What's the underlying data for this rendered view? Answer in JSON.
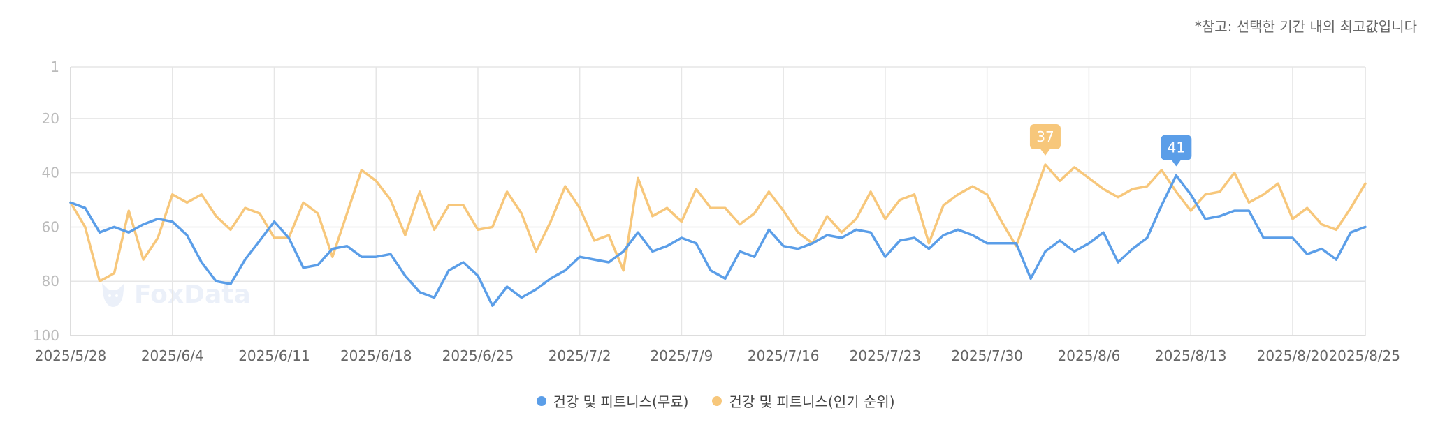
{
  "note": "*참고: 선택한 기간 내의 최고값입니다",
  "watermark": "FoxData",
  "legend": [
    {
      "label": "건강 및 피트니스(무료)",
      "color": "#5b9ee8"
    },
    {
      "label": "건강 및 피트니스(인기 순위)",
      "color": "#f7c77b"
    }
  ],
  "chart_data": {
    "type": "line",
    "y_inverted": true,
    "ylim": [
      1,
      100
    ],
    "y_ticks": [
      "1",
      "20",
      "40",
      "60",
      "80",
      "100"
    ],
    "x_tick_labels": [
      "2025/5/28",
      "2025/6/4",
      "2025/6/11",
      "2025/6/18",
      "2025/6/25",
      "2025/7/2",
      "2025/7/9",
      "2025/7/16",
      "2025/7/23",
      "2025/7/30",
      "2025/8/6",
      "2025/8/13",
      "2025/8/20",
      "2025/8/25"
    ],
    "x_start": "2025/5/28",
    "x_end": "2025/8/25",
    "grid": true,
    "legend_position": "bottom-center",
    "series": [
      {
        "name": "건강 및 피트니스(무료)",
        "color": "#5b9ee8",
        "values": [
          51,
          53,
          62,
          60,
          62,
          59,
          57,
          58,
          63,
          73,
          80,
          81,
          72,
          65,
          58,
          64,
          75,
          74,
          68,
          67,
          71,
          71,
          70,
          78,
          84,
          86,
          76,
          73,
          78,
          89,
          82,
          86,
          83,
          79,
          76,
          71,
          72,
          73,
          69,
          62,
          69,
          67,
          64,
          66,
          76,
          79,
          69,
          71,
          61,
          67,
          68,
          66,
          63,
          64,
          61,
          62,
          71,
          65,
          64,
          68,
          63,
          61,
          63,
          66,
          66,
          66,
          79,
          69,
          65,
          69,
          66,
          62,
          73,
          68,
          64,
          52,
          41,
          48,
          57,
          56,
          54,
          54,
          64,
          64,
          64,
          70,
          68,
          72,
          62,
          60
        ],
        "peak": {
          "value": 41,
          "label": "41"
        }
      },
      {
        "name": "건강 및 피트니스(인기 순위)",
        "color": "#f7c77b",
        "values": [
          51,
          60,
          80,
          77,
          54,
          72,
          64,
          48,
          51,
          48,
          56,
          61,
          53,
          55,
          64,
          64,
          51,
          55,
          71,
          55,
          39,
          43,
          50,
          63,
          47,
          61,
          52,
          52,
          61,
          60,
          47,
          55,
          69,
          58,
          45,
          53,
          65,
          63,
          76,
          42,
          56,
          53,
          58,
          46,
          53,
          53,
          59,
          55,
          47,
          54,
          62,
          66,
          56,
          62,
          57,
          47,
          57,
          50,
          48,
          66,
          52,
          48,
          45,
          48,
          58,
          67,
          52,
          37,
          43,
          38,
          42,
          46,
          49,
          46,
          45,
          39,
          47,
          54,
          48,
          47,
          40,
          51,
          48,
          44,
          57,
          53,
          59,
          61,
          53,
          44
        ],
        "peak": {
          "value": 37,
          "label": "37"
        }
      }
    ]
  }
}
